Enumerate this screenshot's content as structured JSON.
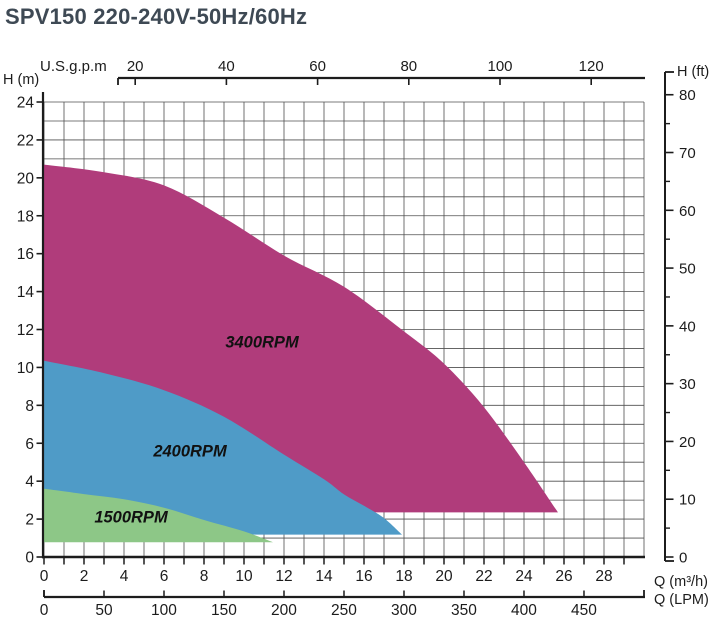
{
  "title": "SPV150 220-240V-50Hz/60Hz",
  "colors": {
    "title_text": "#3e4954",
    "axis": "#1c1c1c",
    "grid": "#4f4f4f",
    "tick_text": "#1c1c1c",
    "region_3400rpm": "#b03c7b",
    "region_2400rpm": "#4f9bc7",
    "region_1500rpm": "#8dc787",
    "region_label_text": "#111111"
  },
  "chart_data": {
    "type": "area",
    "title": "SPV150 220-240V-50Hz/60Hz",
    "plot": {
      "x_min": 0,
      "x_max": 30,
      "y_min": 0,
      "y_max": 24,
      "grid_x_step": 1,
      "grid_y_step": 1,
      "grid_on": true
    },
    "axes": {
      "bottom": {
        "label": "Q (m³/h)",
        "tick_labels": [
          0,
          2,
          4,
          6,
          8,
          10,
          12,
          14,
          16,
          18,
          20,
          22,
          24,
          26,
          28
        ],
        "minor_tick_step": 1,
        "minor_tick_max": 29
      },
      "lpm": {
        "label": "Q (LPM)",
        "tick_labels": [
          0,
          50,
          100,
          150,
          200,
          250,
          300,
          350,
          400,
          450
        ],
        "lpm_per_m3h": 16.667
      },
      "top": {
        "label": "U.S.g.p.m",
        "tick_labels": [
          20,
          40,
          60,
          80,
          100,
          120
        ],
        "m3h_per_gpm": 0.228
      },
      "left": {
        "label": "H (m)",
        "tick_labels": [
          0,
          2,
          4,
          6,
          8,
          10,
          12,
          14,
          16,
          18,
          20,
          22,
          24
        ]
      },
      "right": {
        "label": "H (ft)",
        "tick_labels": [
          0,
          10,
          20,
          30,
          40,
          50,
          60,
          70,
          80
        ],
        "minor_tick_step": 5,
        "m_per_ft": 0.3048
      }
    },
    "series": [
      {
        "name": "3400RPM",
        "color_key": "region_3400rpm",
        "bottom_head_m": 2.35,
        "curve_q_h": [
          [
            0,
            20.7
          ],
          [
            3,
            20.3
          ],
          [
            6,
            19.6
          ],
          [
            9,
            17.9
          ],
          [
            12,
            15.9
          ],
          [
            15,
            14.25
          ],
          [
            18,
            11.9
          ],
          [
            20,
            10.2
          ],
          [
            22,
            7.9
          ],
          [
            24,
            5.0
          ],
          [
            25.7,
            2.35
          ]
        ],
        "label": {
          "text": "3400RPM",
          "q": 10.9,
          "h": 11.35
        }
      },
      {
        "name": "2400RPM",
        "color_key": "region_2400rpm",
        "bottom_head_m": 1.18,
        "curve_q_h": [
          [
            0,
            10.35
          ],
          [
            3,
            9.7
          ],
          [
            6,
            8.8
          ],
          [
            9,
            7.4
          ],
          [
            12,
            5.4
          ],
          [
            14,
            4.1
          ],
          [
            15,
            3.3
          ],
          [
            16,
            2.7
          ],
          [
            17,
            2.05
          ],
          [
            17.9,
            1.18
          ]
        ],
        "label": {
          "text": "2400RPM",
          "q": 7.3,
          "h": 5.6
        }
      },
      {
        "name": "1500RPM",
        "color_key": "region_1500rpm",
        "bottom_head_m": 0.78,
        "curve_q_h": [
          [
            0,
            3.6
          ],
          [
            2,
            3.32
          ],
          [
            4,
            3.05
          ],
          [
            6,
            2.6
          ],
          [
            8,
            1.95
          ],
          [
            10,
            1.35
          ],
          [
            11.45,
            0.78
          ]
        ],
        "label": {
          "text": "1500RPM",
          "q": 4.35,
          "h": 2.1
        }
      }
    ]
  }
}
